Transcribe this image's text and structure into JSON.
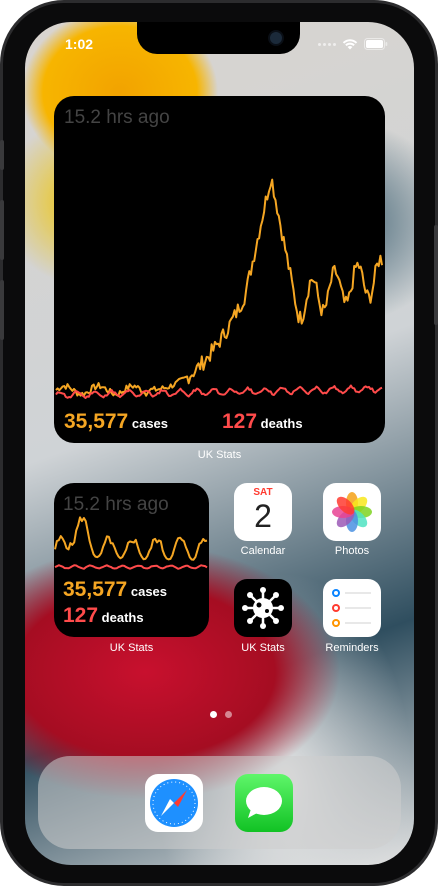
{
  "status": {
    "time": "1:02"
  },
  "big_widget": {
    "updated": "15.2 hrs ago",
    "cases_value": "35,577",
    "cases_label": "cases",
    "deaths_value": "127",
    "deaths_label": "deaths",
    "label": "UK Stats"
  },
  "small_widget": {
    "updated": "15.2 hrs ago",
    "cases_value": "35,577",
    "cases_label": "cases",
    "deaths_value": "127",
    "deaths_label": "deaths",
    "label": "UK Stats"
  },
  "apps": {
    "calendar": {
      "label": "Calendar",
      "day": "SAT",
      "date": "2"
    },
    "photos": {
      "label": "Photos"
    },
    "ukstats": {
      "label": "UK Stats"
    },
    "reminders": {
      "label": "Reminders"
    }
  },
  "page_indicator": {
    "current": 1,
    "total": 2
  },
  "colors": {
    "cases": "#f5a623",
    "deaths": "#ff4b4b",
    "widget_bg": "#000000"
  },
  "icons": [
    "wifi-icon",
    "battery-icon",
    "safari-icon",
    "messages-icon",
    "virus-icon",
    "photos-flower-icon",
    "reminders-list-icon"
  ]
}
